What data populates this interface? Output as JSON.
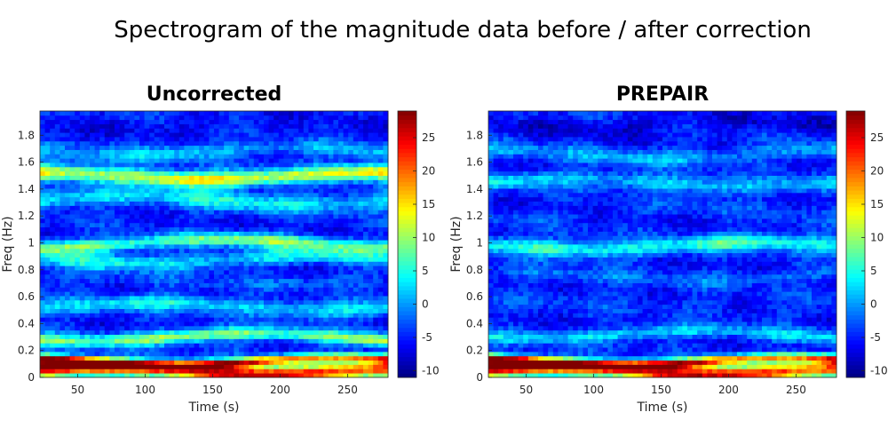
{
  "chart_data": {
    "type": "heatmap",
    "suptitle": "Spectrogram of the magnitude data before / after correction",
    "colormap": "jet",
    "panels": [
      {
        "title": "Uncorrected",
        "xlabel": "Time (s)",
        "ylabel": "Freq (Hz)",
        "xlim": [
          22,
          280
        ],
        "ylim": [
          0,
          1.98
        ],
        "xticks": [
          50,
          100,
          150,
          200,
          250
        ],
        "yticks": [
          0,
          0.2,
          0.4,
          0.6,
          0.8,
          1,
          1.2,
          1.4,
          1.6,
          1.8
        ],
        "clim": [
          -11,
          29
        ],
        "cticks": [
          -10,
          -5,
          0,
          5,
          10,
          15,
          20,
          25
        ],
        "bands": [
          {
            "freq": 0.05,
            "value": 24,
            "width": 0.06
          },
          {
            "freq": 0.12,
            "value": 20,
            "width": 0.035
          },
          {
            "freq": 0.3,
            "value": 9,
            "width": 0.05
          },
          {
            "freq": 0.53,
            "value": 3,
            "width": 0.06
          },
          {
            "freq": 0.72,
            "value": -3,
            "width": 0.05
          },
          {
            "freq": 0.88,
            "value": 3,
            "width": 0.06
          },
          {
            "freq": 1.0,
            "value": 8,
            "width": 0.05
          },
          {
            "freq": 1.32,
            "value": 3,
            "width": 0.07
          },
          {
            "freq": 1.5,
            "value": 13,
            "width": 0.06
          },
          {
            "freq": 1.68,
            "value": 1,
            "width": 0.06
          },
          {
            "freq": 1.85,
            "value": -6,
            "width": 0.07
          }
        ]
      },
      {
        "title": "PREPAIR",
        "xlabel": "Time (s)",
        "ylabel": "Freq (Hz)",
        "xlim": [
          22,
          280
        ],
        "ylim": [
          0,
          1.98
        ],
        "xticks": [
          50,
          100,
          150,
          200,
          250
        ],
        "yticks": [
          0,
          0.2,
          0.4,
          0.6,
          0.8,
          1,
          1.2,
          1.4,
          1.6,
          1.8
        ],
        "clim": [
          -11,
          29
        ],
        "cticks": [
          -10,
          -5,
          0,
          5,
          10,
          15,
          20,
          25
        ],
        "bands": [
          {
            "freq": 0.05,
            "value": 24,
            "width": 0.06
          },
          {
            "freq": 0.12,
            "value": 20,
            "width": 0.035
          },
          {
            "freq": 0.32,
            "value": 2,
            "width": 0.05
          },
          {
            "freq": 0.55,
            "value": -4,
            "width": 0.06
          },
          {
            "freq": 0.75,
            "value": -2,
            "width": 0.05
          },
          {
            "freq": 0.98,
            "value": 5,
            "width": 0.06
          },
          {
            "freq": 1.22,
            "value": -4,
            "width": 0.07
          },
          {
            "freq": 1.45,
            "value": 2,
            "width": 0.06
          },
          {
            "freq": 1.66,
            "value": 0,
            "width": 0.06
          },
          {
            "freq": 1.88,
            "value": -7,
            "width": 0.07
          }
        ]
      }
    ]
  }
}
